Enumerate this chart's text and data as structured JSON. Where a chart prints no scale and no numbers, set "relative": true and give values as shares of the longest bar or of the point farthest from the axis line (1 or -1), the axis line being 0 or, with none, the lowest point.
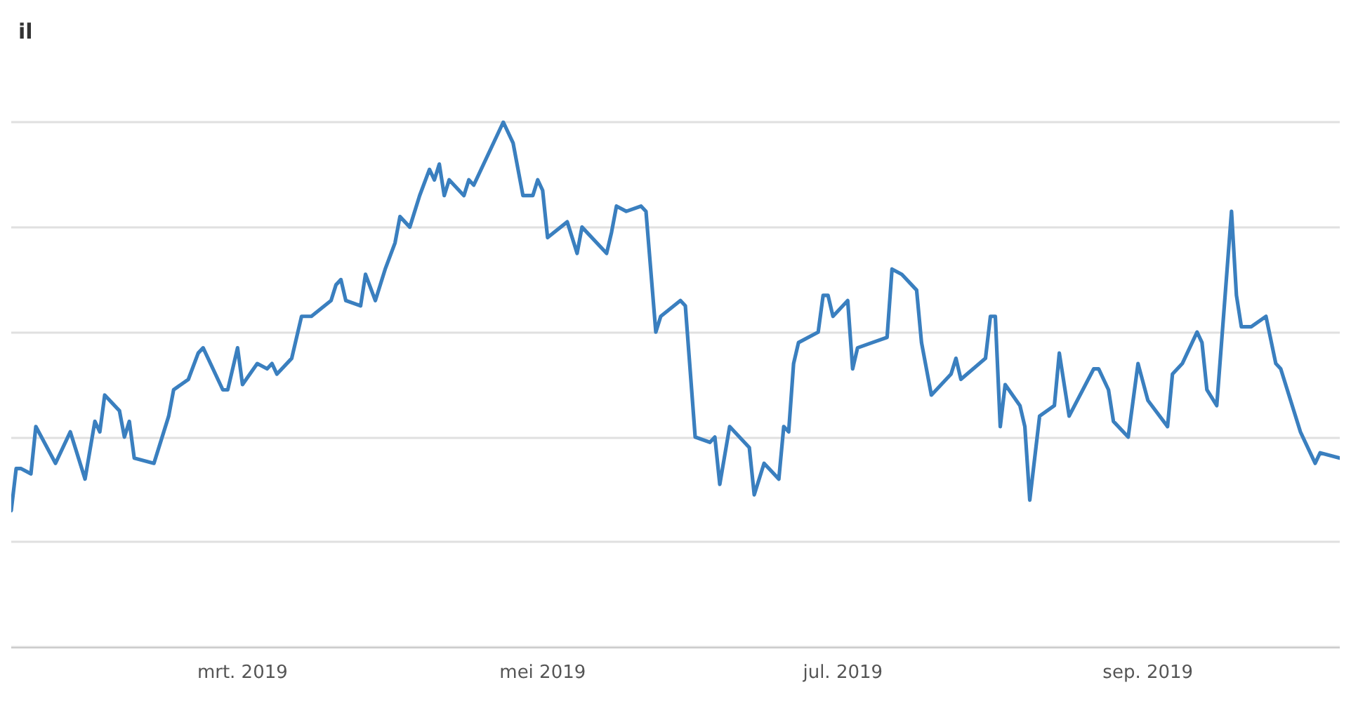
{
  "chart_data": {
    "type": "line",
    "title": "il",
    "relative": true,
    "grid": "y",
    "marker": "none",
    "line_style": "solid",
    "xlim": [
      "2019-01-13",
      "2019-10-10"
    ],
    "xticks": [
      {
        "value": "2019-03-01",
        "label": "mrt. 2019"
      },
      {
        "value": "2019-05-01",
        "label": "mei 2019"
      },
      {
        "value": "2019-07-01",
        "label": "jul. 2019"
      },
      {
        "value": "2019-09-01",
        "label": "sep. 2019"
      }
    ],
    "x": [
      "2019-01-13",
      "2019-01-14",
      "2019-01-15",
      "2019-01-17",
      "2019-01-18",
      "2019-01-22",
      "2019-01-25",
      "2019-01-28",
      "2019-01-30",
      "2019-01-31",
      "2019-02-01",
      "2019-02-04",
      "2019-02-05",
      "2019-02-06",
      "2019-02-07",
      "2019-02-11",
      "2019-02-14",
      "2019-02-15",
      "2019-02-18",
      "2019-02-20",
      "2019-02-21",
      "2019-02-25",
      "2019-02-26",
      "2019-02-28",
      "2019-03-01",
      "2019-03-04",
      "2019-03-06",
      "2019-03-07",
      "2019-03-08",
      "2019-03-11",
      "2019-03-13",
      "2019-03-15",
      "2019-03-19",
      "2019-03-20",
      "2019-03-21",
      "2019-03-22",
      "2019-03-25",
      "2019-03-26",
      "2019-03-28",
      "2019-03-30",
      "2019-04-01",
      "2019-04-02",
      "2019-04-04",
      "2019-04-06",
      "2019-04-08",
      "2019-04-09",
      "2019-04-10",
      "2019-04-11",
      "2019-04-12",
      "2019-04-15",
      "2019-04-16",
      "2019-04-17",
      "2019-04-23",
      "2019-04-25",
      "2019-04-27",
      "2019-04-29",
      "2019-04-30",
      "2019-05-01",
      "2019-05-02",
      "2019-05-06",
      "2019-05-08",
      "2019-05-09",
      "2019-05-14",
      "2019-05-15",
      "2019-05-16",
      "2019-05-18",
      "2019-05-21",
      "2019-05-22",
      "2019-05-24",
      "2019-05-25",
      "2019-05-29",
      "2019-05-30",
      "2019-06-01",
      "2019-06-04",
      "2019-06-05",
      "2019-06-06",
      "2019-06-08",
      "2019-06-11",
      "2019-06-12",
      "2019-06-13",
      "2019-06-15",
      "2019-06-18",
      "2019-06-19",
      "2019-06-20",
      "2019-06-21",
      "2019-06-22",
      "2019-06-26",
      "2019-06-27",
      "2019-06-28",
      "2019-06-29",
      "2019-07-02",
      "2019-07-03",
      "2019-07-04",
      "2019-07-07",
      "2019-07-10",
      "2019-07-11",
      "2019-07-13",
      "2019-07-16",
      "2019-07-17",
      "2019-07-19",
      "2019-07-23",
      "2019-07-24",
      "2019-07-25",
      "2019-07-30",
      "2019-07-31",
      "2019-08-01",
      "2019-08-02",
      "2019-08-03",
      "2019-08-06",
      "2019-08-07",
      "2019-08-08",
      "2019-08-10",
      "2019-08-13",
      "2019-08-14",
      "2019-08-16",
      "2019-08-21",
      "2019-08-22",
      "2019-08-24",
      "2019-08-25",
      "2019-08-28",
      "2019-08-30",
      "2019-09-01",
      "2019-09-05",
      "2019-09-06",
      "2019-09-08",
      "2019-09-11",
      "2019-09-12",
      "2019-09-13",
      "2019-09-15",
      "2019-09-18",
      "2019-09-19",
      "2019-09-20",
      "2019-09-22",
      "2019-09-25",
      "2019-09-27",
      "2019-09-28",
      "2019-10-02",
      "2019-10-05",
      "2019-10-06",
      "2019-10-10"
    ],
    "series": [
      {
        "color": "#3a7fbf",
        "values": [
          0.26,
          0.34,
          0.34,
          0.33,
          0.42,
          0.35,
          0.41,
          0.32,
          0.43,
          0.41,
          0.48,
          0.45,
          0.4,
          0.43,
          0.36,
          0.35,
          0.44,
          0.49,
          0.51,
          0.56,
          0.57,
          0.49,
          0.49,
          0.57,
          0.5,
          0.54,
          0.53,
          0.54,
          0.52,
          0.55,
          0.63,
          0.63,
          0.66,
          0.69,
          0.7,
          0.66,
          0.65,
          0.71,
          0.66,
          0.72,
          0.77,
          0.82,
          0.8,
          0.86,
          0.91,
          0.89,
          0.92,
          0.86,
          0.89,
          0.86,
          0.89,
          0.88,
          1,
          0.96,
          0.86,
          0.86,
          0.89,
          0.87,
          0.78,
          0.81,
          0.75,
          0.8,
          0.75,
          0.79,
          0.84,
          0.83,
          0.84,
          0.83,
          0.6,
          0.63,
          0.66,
          0.65,
          0.4,
          0.39,
          0.4,
          0.31,
          0.42,
          0.39,
          0.38,
          0.29,
          0.35,
          0.32,
          0.42,
          0.41,
          0.54,
          0.58,
          0.6,
          0.67,
          0.67,
          0.63,
          0.66,
          0.53,
          0.57,
          0.58,
          0.59,
          0.72,
          0.71,
          0.68,
          0.58,
          0.48,
          0.52,
          0.55,
          0.51,
          0.55,
          0.63,
          0.63,
          0.42,
          0.5,
          0.46,
          0.42,
          0.28,
          0.44,
          0.46,
          0.56,
          0.44,
          0.53,
          0.53,
          0.49,
          0.43,
          0.4,
          0.54,
          0.47,
          0.42,
          0.52,
          0.54,
          0.6,
          0.58,
          0.49,
          0.46,
          0.83,
          0.67,
          0.61,
          0.61,
          0.63,
          0.54,
          0.53,
          0.41,
          0.35,
          0.37,
          0.36
        ]
      }
    ]
  }
}
